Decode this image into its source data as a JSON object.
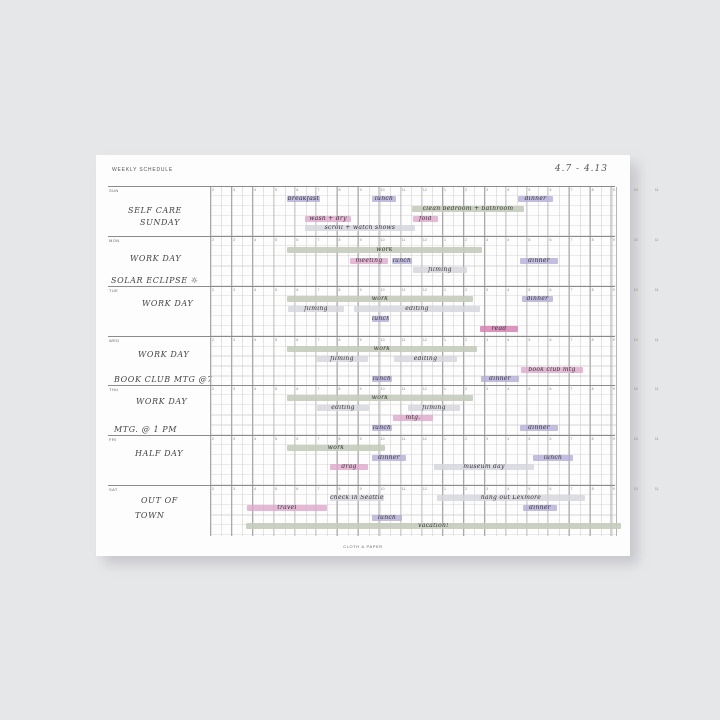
{
  "planner": {
    "title": "WEEKLY SCHEDULE",
    "dates": "4.7 - 4.13",
    "brand": "CLOTH & PAPER",
    "hour_labels": [
      "2",
      "3",
      "4",
      "5",
      "6",
      "7",
      "8",
      "9",
      "10",
      "11",
      "12",
      "1",
      "2",
      "3",
      "4",
      "5",
      "6",
      "7",
      "8",
      "9",
      "10",
      "11"
    ]
  },
  "days": [
    {
      "label": "SUN",
      "notes": [
        "SELF CARE",
        "SUNDAY"
      ],
      "events": [
        {
          "text": "breakfast",
          "color": "violet"
        },
        {
          "text": "lunch",
          "color": "violet"
        },
        {
          "text": "dinner",
          "color": "violet"
        },
        {
          "text": "clean bedroom + bathroom",
          "color": "sage"
        },
        {
          "text": "wash + dry",
          "color": "pink"
        },
        {
          "text": "fold",
          "color": "pink"
        },
        {
          "text": "scroll + watch shows",
          "color": "gray"
        }
      ]
    },
    {
      "label": "MON",
      "notes": [
        "WORK DAY",
        "SOLAR ECLIPSE ☼"
      ],
      "events": [
        {
          "text": "work",
          "color": "sage"
        },
        {
          "text": "meeting",
          "color": "pink"
        },
        {
          "text": "lunch",
          "color": "violet"
        },
        {
          "text": "dinner",
          "color": "violet"
        },
        {
          "text": "filming",
          "color": "gray"
        }
      ]
    },
    {
      "label": "TUE",
      "notes": [
        "WORK DAY"
      ],
      "events": [
        {
          "text": "work",
          "color": "sage"
        },
        {
          "text": "dinner",
          "color": "violet"
        },
        {
          "text": "filming",
          "color": "gray"
        },
        {
          "text": "editing",
          "color": "gray"
        },
        {
          "text": "lunch",
          "color": "violet"
        },
        {
          "text": "read",
          "color": "mag"
        }
      ]
    },
    {
      "label": "WED",
      "notes": [
        "WORK DAY",
        "BOOK CLUB MTG @7"
      ],
      "events": [
        {
          "text": "work",
          "color": "sage"
        },
        {
          "text": "filming",
          "color": "gray"
        },
        {
          "text": "editing",
          "color": "gray"
        },
        {
          "text": "book club mtg",
          "color": "pink"
        },
        {
          "text": "lunch",
          "color": "violet"
        },
        {
          "text": "dinner",
          "color": "violet"
        }
      ]
    },
    {
      "label": "THU",
      "notes": [
        "WORK DAY",
        "MTG. @ 1 PM"
      ],
      "events": [
        {
          "text": "work",
          "color": "sage"
        },
        {
          "text": "editing",
          "color": "gray"
        },
        {
          "text": "filming",
          "color": "gray"
        },
        {
          "text": "mtg.",
          "color": "pink"
        },
        {
          "text": "lunch",
          "color": "violet"
        },
        {
          "text": "dinner",
          "color": "violet"
        }
      ]
    },
    {
      "label": "FRI",
      "notes": [
        "HALF DAY"
      ],
      "events": [
        {
          "text": "work",
          "color": "sage"
        },
        {
          "text": "dinner",
          "color": "violet"
        },
        {
          "text": "lunch",
          "color": "violet"
        },
        {
          "text": "museum day",
          "color": "gray"
        },
        {
          "text": "drag",
          "color": "pink"
        }
      ]
    },
    {
      "label": "SAT",
      "notes": [
        "OUT OF",
        "TOWN"
      ],
      "events": [
        {
          "text": "check in Seattle",
          "color": "gray"
        },
        {
          "text": "hang out Lexmore",
          "color": "gray"
        },
        {
          "text": "travel",
          "color": "pink"
        },
        {
          "text": "dinner",
          "color": "violet"
        },
        {
          "text": "lunch",
          "color": "violet"
        },
        {
          "text": "vacation!",
          "color": "sage"
        }
      ]
    }
  ],
  "colors": {
    "violet": "#b2aad6",
    "pink": "#dea8cc",
    "sage": "#c4ccbc",
    "gray": "#d6d6de",
    "mag": "#d680b2"
  }
}
